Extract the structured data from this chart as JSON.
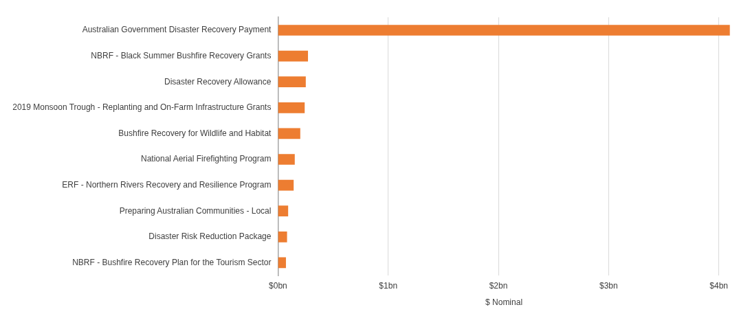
{
  "chart_data": {
    "type": "bar",
    "orientation": "horizontal",
    "xlabel": "$ Nominal",
    "categories": [
      "Australian Government Disaster Recovery Payment",
      "NBRF - Black Summer Bushfire Recovery Grants",
      "Disaster Recovery Allowance",
      "2019 Monsoon Trough - Replanting and On-Farm Infrastructure Grants",
      "Bushfire Recovery for Wildlife and Habitat",
      "National Aerial Firefighting Program",
      "ERF - Northern Rivers Recovery and Resilience Program",
      "Preparing Australian Communities - Local",
      "Disaster Risk Reduction Package",
      "NBRF - Bushfire Recovery Plan for the Tourism Sector"
    ],
    "values": [
      4.1,
      0.27,
      0.25,
      0.24,
      0.2,
      0.15,
      0.14,
      0.09,
      0.08,
      0.07
    ],
    "color": "#ed7d31",
    "xlim": [
      0,
      4.1
    ],
    "xticks": [
      {
        "value": 0,
        "label": "$0bn"
      },
      {
        "value": 1,
        "label": "$1bn"
      },
      {
        "value": 2,
        "label": "$2bn"
      },
      {
        "value": 3,
        "label": "$3bn"
      },
      {
        "value": 4,
        "label": "$4bn"
      }
    ],
    "grid": "x",
    "legend": false
  }
}
